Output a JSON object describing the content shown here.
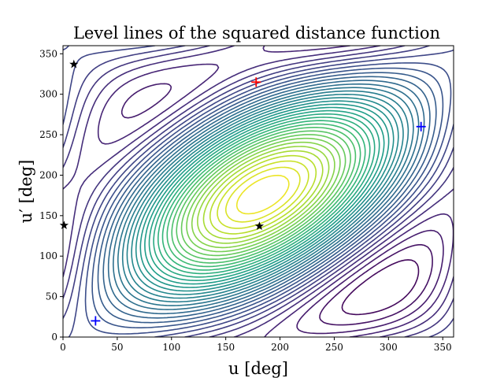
{
  "chart_data": {
    "type": "contour",
    "title": "Level lines of the squared distance function",
    "xlabel": "u [deg]",
    "ylabel": "u′ [deg]",
    "xlim": [
      0,
      360
    ],
    "ylim": [
      0,
      360
    ],
    "xticks": [
      0,
      50,
      100,
      150,
      200,
      250,
      300,
      350
    ],
    "yticks": [
      0,
      50,
      100,
      150,
      200,
      250,
      300,
      350
    ],
    "colormap": "viridis",
    "grid": false,
    "markers": [
      {
        "kind": "plus",
        "color": "#ff0000",
        "x": 178,
        "y": 315
      },
      {
        "kind": "plus",
        "color": "#0000ff",
        "x": 30,
        "y": 20
      },
      {
        "kind": "plus",
        "color": "#0000ff",
        "x": 330,
        "y": 260
      },
      {
        "kind": "star",
        "color": "#000000",
        "x": 181,
        "y": 137
      },
      {
        "kind": "star",
        "color": "#000000",
        "x": 10,
        "y": 337
      },
      {
        "kind": "star",
        "color": "#000000",
        "x": 1,
        "y": 138
      }
    ]
  }
}
